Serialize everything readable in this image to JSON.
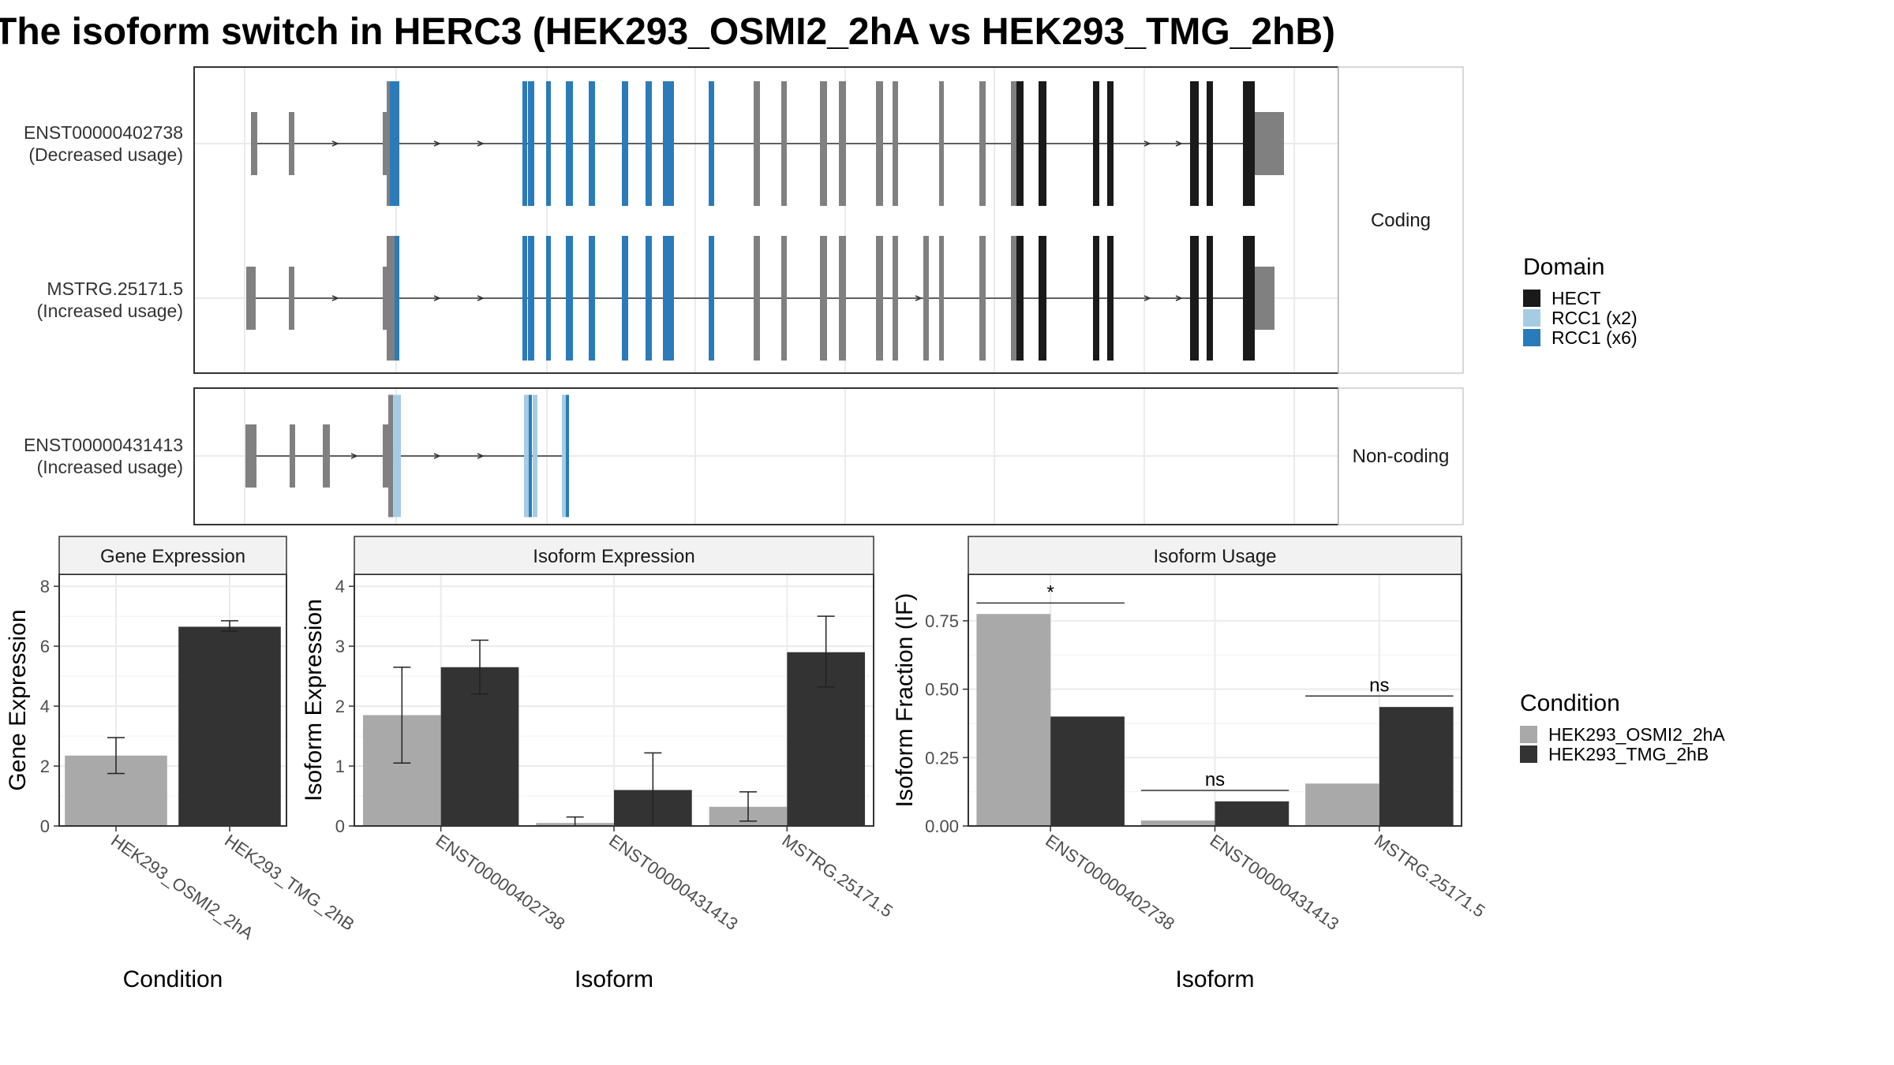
{
  "title": "The isoform switch in HERC3 (HEK293_OSMI2_2hA vs HEK293_TMG_2hB)",
  "colors": {
    "hect": "#1a1a1a",
    "rcc1_x2": "#a6cce3",
    "rcc1_x6": "#2b7bba",
    "exon": "#808080",
    "cond_a": "#a9a9a9",
    "cond_b": "#333333",
    "panel_border": "#333333",
    "grid": "#ebebeb",
    "strip_fill": "#f2f2f2"
  },
  "transcripts": {
    "facets": {
      "coding": "Coding",
      "noncoding": "Non-coding"
    },
    "items": [
      {
        "id": "ENST00000402738",
        "usage": "(Decreased usage)",
        "facet": "coding"
      },
      {
        "id": "MSTRG.25171.5",
        "usage": "(Increased usage)",
        "facet": "coding"
      },
      {
        "id": "ENST00000431413",
        "usage": "(Increased usage)",
        "facet": "noncoding"
      }
    ]
  },
  "legends": {
    "domain": {
      "title": "Domain",
      "items": [
        "HECT",
        "RCC1 (x2)",
        "RCC1 (x6)"
      ]
    },
    "condition": {
      "title": "Condition",
      "items": [
        "HEK293_OSMI2_2hA",
        "HEK293_TMG_2hB"
      ]
    }
  },
  "chart_data": [
    {
      "type": "bar",
      "title": "Gene Expression",
      "xlabel": "Condition",
      "ylabel": "Gene Expression",
      "categories": [
        "HEK293_OSMI2_2hA",
        "HEK293_TMG_2hB"
      ],
      "values": [
        2.35,
        6.65
      ],
      "errors": [
        [
          1.75,
          2.95
        ],
        [
          6.5,
          6.85
        ]
      ],
      "ylim": [
        0,
        8.4
      ],
      "yticks": [
        0,
        2,
        4,
        6,
        8
      ],
      "grid": true
    },
    {
      "type": "bar",
      "title": "Isoform Expression",
      "xlabel": "Isoform",
      "ylabel": "Isoform Expression",
      "categories": [
        "ENST00000402738",
        "ENST00000431413",
        "MSTRG.25171.5"
      ],
      "series": [
        {
          "name": "HEK293_OSMI2_2hA",
          "values": [
            1.85,
            0.05,
            0.32
          ],
          "errors": [
            [
              1.05,
              2.65
            ],
            [
              0.0,
              0.15
            ],
            [
              0.08,
              0.57
            ]
          ]
        },
        {
          "name": "HEK293_TMG_2hB",
          "values": [
            2.65,
            0.6,
            2.9
          ],
          "errors": [
            [
              2.2,
              3.1
            ],
            [
              0.0,
              1.22
            ],
            [
              2.32,
              3.5
            ]
          ]
        }
      ],
      "ylim": [
        0,
        4.2
      ],
      "yticks": [
        0,
        1,
        2,
        3,
        4
      ],
      "grid": true
    },
    {
      "type": "bar",
      "title": "Isoform Usage",
      "xlabel": "Isoform",
      "ylabel": "Isoform Fraction (IF)",
      "categories": [
        "ENST00000402738",
        "ENST00000431413",
        "MSTRG.25171.5"
      ],
      "series": [
        {
          "name": "HEK293_OSMI2_2hA",
          "values": [
            0.775,
            0.02,
            0.155
          ]
        },
        {
          "name": "HEK293_TMG_2hB",
          "values": [
            0.4,
            0.09,
            0.435
          ]
        }
      ],
      "significance": [
        "*",
        "ns",
        "ns"
      ],
      "significance_y": [
        0.815,
        0.13,
        0.475
      ],
      "ylim": [
        0,
        0.92
      ],
      "yticks": [
        0.0,
        0.25,
        0.5,
        0.75
      ],
      "yticklabels": [
        "0.00",
        "0.25",
        "0.50",
        "0.75"
      ],
      "grid": true
    }
  ]
}
